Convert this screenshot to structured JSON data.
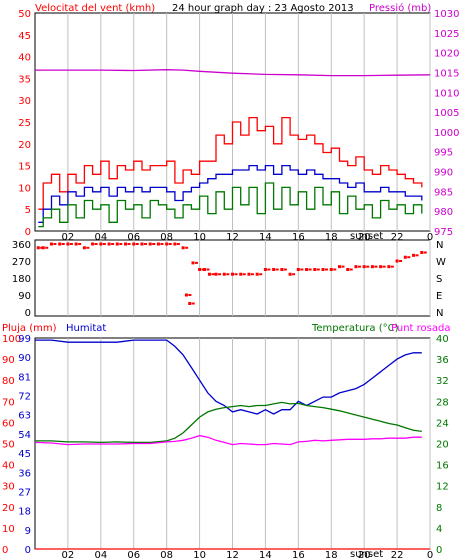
{
  "colors": {
    "wind": "#ff0000",
    "gust": "#ff0000",
    "wind_avg": "#0000cc",
    "wind_low": "#007700",
    "pressure": "#cc00cc",
    "humidity": "#0000cc",
    "temperature": "#007700",
    "dewpoint": "#ff00ff",
    "rain": "#ff0000",
    "grid": "#c0c0c0",
    "frame": "#000000"
  },
  "chart_data": [
    {
      "type": "line",
      "title": "24 hour graph day : 23 Agosto 2013",
      "left_label": "Velocitat del vent (kmh)",
      "right_label": "Pressió (mb)",
      "x_ticks": [
        "02",
        "04",
        "06",
        "08",
        "10",
        "12",
        "14",
        "16",
        "18",
        "20",
        "22",
        "0"
      ],
      "x_extra_label": "sunset",
      "y_left_ticks": [
        "0",
        "5",
        "10",
        "15",
        "20",
        "25",
        "30",
        "35",
        "40",
        "45",
        "50"
      ],
      "y_left_range": [
        0,
        50
      ],
      "y_right_ticks": [
        "975",
        "980",
        "985",
        "990",
        "995",
        "1000",
        "1005",
        "1010",
        "1015",
        "1020",
        "1025",
        "1030"
      ],
      "y_right_range": [
        975,
        1030
      ],
      "x_range": [
        0,
        24
      ],
      "series": [
        {
          "key": "gust",
          "x": [
            0.2,
            0.5,
            1,
            1.5,
            2,
            2.5,
            3,
            3.5,
            4,
            4.5,
            5,
            5.5,
            6,
            6.5,
            7,
            7.5,
            8,
            8.5,
            9,
            9.5,
            10,
            10.5,
            11,
            11.5,
            12,
            12.5,
            13,
            13.5,
            14,
            14.5,
            15,
            15.5,
            16,
            16.5,
            17,
            17.5,
            18,
            18.5,
            19,
            19.5,
            20,
            20.5,
            21,
            21.5,
            22,
            22.5,
            23,
            23.5
          ],
          "values": [
            5,
            11,
            13,
            9,
            13,
            11,
            15,
            13,
            16,
            12,
            15,
            14,
            16,
            14,
            15,
            15,
            16,
            11,
            14,
            13,
            16,
            16,
            22,
            20,
            25,
            22,
            26,
            23,
            24,
            20,
            26,
            22,
            21,
            22,
            20,
            18,
            19,
            16,
            15,
            17,
            14,
            13,
            15,
            14,
            13,
            12,
            11,
            10
          ]
        },
        {
          "key": "wind_avg",
          "x": [
            0.2,
            0.5,
            1,
            1.5,
            2,
            2.5,
            3,
            3.5,
            4,
            4.5,
            5,
            5.5,
            6,
            6.5,
            7,
            7.5,
            8,
            8.5,
            9,
            9.5,
            10,
            10.5,
            11,
            11.5,
            12,
            12.5,
            13,
            13.5,
            14,
            14.5,
            15,
            15.5,
            16,
            16.5,
            17,
            17.5,
            18,
            18.5,
            19,
            19.5,
            20,
            20.5,
            21,
            21.5,
            22,
            22.5,
            23,
            23.5
          ],
          "values": [
            2,
            5,
            8,
            6,
            9,
            8,
            10,
            9,
            10,
            8,
            10,
            9,
            10,
            9,
            10,
            10,
            9,
            7,
            9,
            10,
            11,
            12,
            13,
            13,
            14,
            14,
            15,
            14,
            15,
            13,
            15,
            14,
            13,
            14,
            13,
            12,
            12,
            11,
            10,
            11,
            9,
            9,
            10,
            9,
            9,
            8,
            8,
            7
          ]
        },
        {
          "key": "wind_low",
          "x": [
            0.2,
            0.5,
            1,
            1.5,
            2,
            2.5,
            3,
            3.5,
            4,
            4.5,
            5,
            5.5,
            6,
            6.5,
            7,
            7.5,
            8,
            8.5,
            9,
            9.5,
            10,
            10.5,
            11,
            11.5,
            12,
            12.5,
            13,
            13.5,
            14,
            14.5,
            15,
            15.5,
            16,
            16.5,
            17,
            17.5,
            18,
            18.5,
            19,
            19.5,
            20,
            20.5,
            21,
            21.5,
            22,
            22.5,
            23,
            23.5
          ],
          "values": [
            1,
            3,
            5,
            2,
            6,
            3,
            7,
            5,
            6,
            2,
            7,
            5,
            6,
            3,
            7,
            6,
            5,
            3,
            6,
            5,
            8,
            4,
            9,
            5,
            10,
            6,
            10,
            4,
            11,
            5,
            10,
            6,
            9,
            5,
            10,
            6,
            9,
            4,
            8,
            5,
            6,
            3,
            7,
            5,
            6,
            4,
            6,
            4
          ]
        },
        {
          "key": "pressure",
          "axis": "right",
          "x": [
            0,
            2,
            4,
            6,
            8,
            9,
            10,
            12,
            14,
            16,
            18,
            20,
            22,
            24
          ],
          "values": [
            1015.6,
            1015.6,
            1015.6,
            1015.5,
            1015.7,
            1015.6,
            1015.3,
            1014.8,
            1014.5,
            1014.4,
            1014.2,
            1014.2,
            1014.3,
            1014.4
          ]
        }
      ]
    },
    {
      "type": "scatter",
      "title": "",
      "y_left_ticks": [
        "360",
        "270",
        "180",
        "90",
        "0"
      ],
      "y_range": [
        0,
        360
      ],
      "y_right_ticks": [
        "N",
        "W",
        "S",
        "E",
        "N"
      ],
      "x_range": [
        0,
        24
      ],
      "series": [
        {
          "key": "direction",
          "x": [
            0.2,
            0.5,
            1,
            1.5,
            2,
            2.5,
            3,
            3.5,
            4,
            4.5,
            5,
            5.5,
            6,
            6.5,
            7,
            7.5,
            8,
            8.5,
            9,
            9.2,
            9.4,
            9.6,
            10,
            10.3,
            10.6,
            11,
            11.5,
            12,
            12.5,
            13,
            13.5,
            14,
            14.5,
            15,
            15.5,
            16,
            16.5,
            17,
            17.5,
            18,
            18.5,
            19,
            19.5,
            20,
            20.5,
            21,
            21.5,
            22,
            22.5,
            23,
            23.5
          ],
          "values": [
            340,
            340,
            360,
            360,
            360,
            360,
            340,
            360,
            360,
            360,
            360,
            360,
            360,
            360,
            360,
            360,
            360,
            360,
            340,
            90,
            45,
            260,
            225,
            225,
            200,
            200,
            200,
            200,
            200,
            200,
            200,
            225,
            225,
            225,
            200,
            225,
            225,
            225,
            225,
            225,
            240,
            225,
            240,
            240,
            240,
            240,
            240,
            270,
            290,
            300,
            315
          ]
        }
      ]
    },
    {
      "type": "line",
      "title": "",
      "left_label": "Pluja (mm)",
      "left_label2": "Humitat",
      "right_label": "Temperatura (°C)",
      "right_label2": "Punt rosada",
      "x_ticks": [
        "02",
        "04",
        "06",
        "08",
        "10",
        "12",
        "14",
        "16",
        "18",
        "20",
        "22",
        "0"
      ],
      "x_extra_label": "sunset",
      "y_left_ticks": [
        "0",
        "5",
        "10",
        "15",
        "20",
        "25",
        "30",
        "35",
        "40",
        "45",
        "50",
        "55",
        "60",
        "65",
        "70",
        "75",
        "80",
        "85",
        "90",
        "95",
        "100"
      ],
      "y_hum_ticks": [
        "0",
        "3",
        "6",
        "9",
        "12",
        "15",
        "18",
        "21",
        "24",
        "27",
        "30",
        "33",
        "36",
        "39",
        "42",
        "45",
        "48",
        "51",
        "54",
        "57",
        "60",
        "63",
        "66",
        "69",
        "72",
        "75",
        "78",
        "81",
        "84",
        "87",
        "90",
        "93",
        "96",
        "99"
      ],
      "y_left_range": [
        0,
        100
      ],
      "y_right_ticks": [
        "0",
        "4",
        "8",
        "12",
        "16",
        "20",
        "24",
        "28",
        "32",
        "36",
        "40"
      ],
      "y_right_range": [
        0,
        40
      ],
      "x_range": [
        0,
        24
      ],
      "series": [
        {
          "key": "humidity",
          "x": [
            0,
            1,
            2,
            3,
            4,
            5,
            6,
            7,
            8,
            8.5,
            9,
            9.5,
            10,
            10.5,
            11,
            11.5,
            12,
            12.5,
            13,
            13.5,
            14,
            14.5,
            15,
            15.5,
            16,
            16.5,
            17,
            17.5,
            18,
            18.5,
            19,
            19.5,
            20,
            20.5,
            21,
            21.5,
            22,
            22.5,
            23,
            23.5
          ],
          "values": [
            99,
            99,
            98,
            98,
            98,
            98,
            99,
            99,
            99,
            96,
            92,
            86,
            80,
            74,
            70,
            68,
            65,
            66,
            65,
            64,
            66,
            64,
            66,
            66,
            70,
            68,
            70,
            72,
            72,
            74,
            75,
            76,
            78,
            81,
            84,
            87,
            90,
            92,
            93,
            93
          ]
        },
        {
          "key": "temperature",
          "x": [
            0,
            1,
            2,
            3,
            4,
            5,
            6,
            7,
            8,
            8.5,
            9,
            9.5,
            10,
            10.5,
            11,
            11.5,
            12,
            12.5,
            13,
            13.5,
            14,
            14.5,
            15,
            15.5,
            16,
            16.5,
            17,
            17.5,
            18,
            18.5,
            19,
            19.5,
            20,
            20.5,
            21,
            21.5,
            22,
            22.5,
            23,
            23.5
          ],
          "values": [
            20.5,
            20.5,
            20.3,
            20.3,
            20.2,
            20.3,
            20.2,
            20.2,
            20.5,
            21.0,
            22.0,
            23.5,
            25.0,
            26.0,
            26.5,
            26.8,
            27.0,
            27.2,
            27.0,
            27.2,
            27.2,
            27.5,
            27.8,
            27.5,
            27.6,
            27.2,
            27.0,
            26.8,
            26.5,
            26.2,
            25.8,
            25.4,
            25.0,
            24.6,
            24.2,
            23.8,
            23.5,
            23.0,
            22.5,
            22.3
          ]
        },
        {
          "key": "dewpoint",
          "x": [
            0,
            1,
            2,
            3,
            4,
            5,
            6,
            7,
            8,
            8.5,
            9,
            9.5,
            10,
            10.5,
            11,
            11.5,
            12,
            12.5,
            13,
            13.5,
            14,
            14.5,
            15,
            15.5,
            16,
            16.5,
            17,
            17.5,
            18,
            18.5,
            19,
            19.5,
            20,
            20.5,
            21,
            21.5,
            22,
            22.5,
            23,
            23.5
          ],
          "values": [
            20.2,
            20.1,
            19.8,
            19.9,
            19.9,
            19.9,
            20.0,
            20.0,
            20.3,
            20.4,
            20.6,
            21.0,
            21.5,
            21.2,
            20.6,
            20.2,
            19.8,
            20.0,
            19.9,
            19.8,
            19.8,
            20.0,
            19.9,
            19.8,
            20.3,
            20.4,
            20.6,
            20.5,
            20.6,
            20.7,
            20.8,
            20.8,
            20.8,
            20.9,
            20.9,
            21.0,
            21.0,
            21.0,
            21.2,
            21.2
          ]
        },
        {
          "key": "rain",
          "x": [
            0,
            24
          ],
          "values": [
            0,
            0
          ]
        }
      ]
    }
  ]
}
